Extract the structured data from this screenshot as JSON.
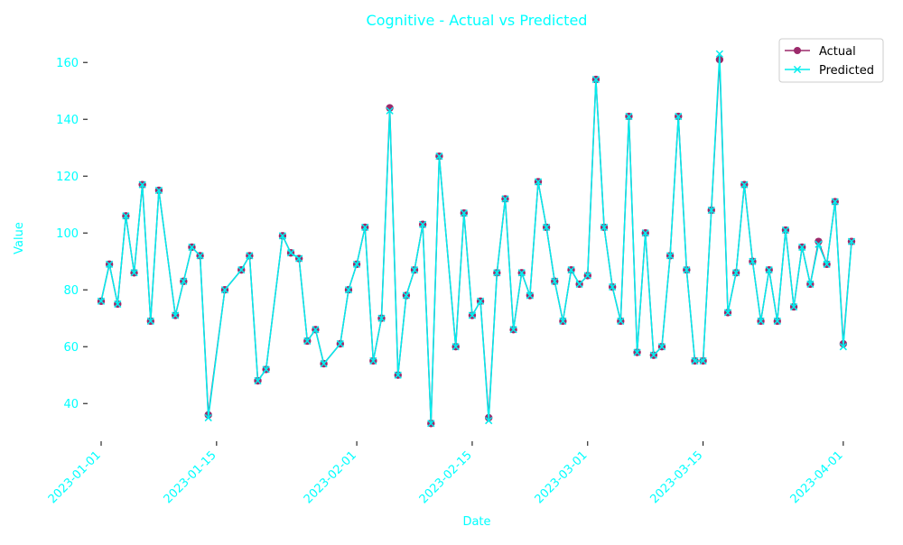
{
  "chart_data": {
    "type": "line",
    "title": "Cognitive - Actual vs Predicted",
    "xlabel": "Date",
    "ylabel": "Value",
    "x_start": "2023-01-01",
    "x_end": "2023-04-02",
    "x_ticks": [
      "2023-01-01",
      "2023-01-15",
      "2023-02-01",
      "2023-02-15",
      "2023-03-01",
      "2023-03-15",
      "2023-04-01"
    ],
    "ylim": [
      28,
      168
    ],
    "y_ticks": [
      40,
      60,
      80,
      100,
      120,
      140,
      160
    ],
    "grid": false,
    "legend": "top-right",
    "colors": {
      "text": "#00ffff",
      "actual": "#9b2a6b",
      "predicted": "#00eeee"
    },
    "series": [
      {
        "name": "Actual",
        "marker": "circle",
        "points": [
          [
            "2023-01-01",
            76
          ],
          [
            "2023-01-02",
            89
          ],
          [
            "2023-01-03",
            75
          ],
          [
            "2023-01-04",
            106
          ],
          [
            "2023-01-05",
            86
          ],
          [
            "2023-01-06",
            117
          ],
          [
            "2023-01-07",
            69
          ],
          [
            "2023-01-08",
            115
          ],
          [
            "2023-01-10",
            71
          ],
          [
            "2023-01-11",
            83
          ],
          [
            "2023-01-12",
            95
          ],
          [
            "2023-01-13",
            92
          ],
          [
            "2023-01-14",
            36
          ],
          [
            "2023-01-16",
            80
          ],
          [
            "2023-01-18",
            87
          ],
          [
            "2023-01-19",
            92
          ],
          [
            "2023-01-20",
            48
          ],
          [
            "2023-01-21",
            52
          ],
          [
            "2023-01-23",
            99
          ],
          [
            "2023-01-24",
            93
          ],
          [
            "2023-01-25",
            91
          ],
          [
            "2023-01-26",
            62
          ],
          [
            "2023-01-27",
            66
          ],
          [
            "2023-01-28",
            54
          ],
          [
            "2023-01-30",
            61
          ],
          [
            "2023-01-31",
            80
          ],
          [
            "2023-02-01",
            89
          ],
          [
            "2023-02-02",
            102
          ],
          [
            "2023-02-03",
            55
          ],
          [
            "2023-02-04",
            70
          ],
          [
            "2023-02-05",
            144
          ],
          [
            "2023-02-06",
            50
          ],
          [
            "2023-02-07",
            78
          ],
          [
            "2023-02-08",
            87
          ],
          [
            "2023-02-09",
            103
          ],
          [
            "2023-02-10",
            33
          ],
          [
            "2023-02-11",
            127
          ],
          [
            "2023-02-13",
            60
          ],
          [
            "2023-02-14",
            107
          ],
          [
            "2023-02-15",
            71
          ],
          [
            "2023-02-16",
            76
          ],
          [
            "2023-02-17",
            35
          ],
          [
            "2023-02-18",
            86
          ],
          [
            "2023-02-19",
            112
          ],
          [
            "2023-02-20",
            66
          ],
          [
            "2023-02-21",
            86
          ],
          [
            "2023-02-22",
            78
          ],
          [
            "2023-02-23",
            118
          ],
          [
            "2023-02-24",
            102
          ],
          [
            "2023-02-25",
            83
          ],
          [
            "2023-02-26",
            69
          ],
          [
            "2023-02-27",
            87
          ],
          [
            "2023-02-28",
            82
          ],
          [
            "2023-03-01",
            85
          ],
          [
            "2023-03-02",
            154
          ],
          [
            "2023-03-03",
            102
          ],
          [
            "2023-03-04",
            81
          ],
          [
            "2023-03-05",
            69
          ],
          [
            "2023-03-06",
            141
          ],
          [
            "2023-03-07",
            58
          ],
          [
            "2023-03-08",
            100
          ],
          [
            "2023-03-09",
            57
          ],
          [
            "2023-03-10",
            60
          ],
          [
            "2023-03-11",
            92
          ],
          [
            "2023-03-12",
            141
          ],
          [
            "2023-03-13",
            87
          ],
          [
            "2023-03-14",
            55
          ],
          [
            "2023-03-15",
            55
          ],
          [
            "2023-03-16",
            108
          ],
          [
            "2023-03-17",
            161
          ],
          [
            "2023-03-18",
            72
          ],
          [
            "2023-03-19",
            86
          ],
          [
            "2023-03-20",
            117
          ],
          [
            "2023-03-21",
            90
          ],
          [
            "2023-03-22",
            69
          ],
          [
            "2023-03-23",
            87
          ],
          [
            "2023-03-24",
            69
          ],
          [
            "2023-03-25",
            101
          ],
          [
            "2023-03-26",
            74
          ],
          [
            "2023-03-27",
            95
          ],
          [
            "2023-03-28",
            82
          ],
          [
            "2023-03-29",
            97
          ],
          [
            "2023-03-30",
            89
          ],
          [
            "2023-03-31",
            111
          ],
          [
            "2023-04-01",
            61
          ],
          [
            "2023-04-02",
            97
          ]
        ]
      },
      {
        "name": "Predicted",
        "marker": "x",
        "points": [
          [
            "2023-01-01",
            76
          ],
          [
            "2023-01-02",
            89
          ],
          [
            "2023-01-03",
            75
          ],
          [
            "2023-01-04",
            106
          ],
          [
            "2023-01-05",
            86
          ],
          [
            "2023-01-06",
            117
          ],
          [
            "2023-01-07",
            69
          ],
          [
            "2023-01-08",
            115
          ],
          [
            "2023-01-10",
            71
          ],
          [
            "2023-01-11",
            83
          ],
          [
            "2023-01-12",
            95
          ],
          [
            "2023-01-13",
            92
          ],
          [
            "2023-01-14",
            35
          ],
          [
            "2023-01-16",
            80
          ],
          [
            "2023-01-18",
            87
          ],
          [
            "2023-01-19",
            92
          ],
          [
            "2023-01-20",
            48
          ],
          [
            "2023-01-21",
            52
          ],
          [
            "2023-01-23",
            99
          ],
          [
            "2023-01-24",
            93
          ],
          [
            "2023-01-25",
            91
          ],
          [
            "2023-01-26",
            62
          ],
          [
            "2023-01-27",
            66
          ],
          [
            "2023-01-28",
            54
          ],
          [
            "2023-01-30",
            61
          ],
          [
            "2023-01-31",
            80
          ],
          [
            "2023-02-01",
            89
          ],
          [
            "2023-02-02",
            102
          ],
          [
            "2023-02-03",
            55
          ],
          [
            "2023-02-04",
            70
          ],
          [
            "2023-02-05",
            143
          ],
          [
            "2023-02-06",
            50
          ],
          [
            "2023-02-07",
            78
          ],
          [
            "2023-02-08",
            87
          ],
          [
            "2023-02-09",
            103
          ],
          [
            "2023-02-10",
            33
          ],
          [
            "2023-02-11",
            127
          ],
          [
            "2023-02-13",
            60
          ],
          [
            "2023-02-14",
            107
          ],
          [
            "2023-02-15",
            71
          ],
          [
            "2023-02-16",
            76
          ],
          [
            "2023-02-17",
            34
          ],
          [
            "2023-02-18",
            86
          ],
          [
            "2023-02-19",
            112
          ],
          [
            "2023-02-20",
            66
          ],
          [
            "2023-02-21",
            86
          ],
          [
            "2023-02-22",
            78
          ],
          [
            "2023-02-23",
            118
          ],
          [
            "2023-02-24",
            102
          ],
          [
            "2023-02-25",
            83
          ],
          [
            "2023-02-26",
            69
          ],
          [
            "2023-02-27",
            87
          ],
          [
            "2023-02-28",
            82
          ],
          [
            "2023-03-01",
            85
          ],
          [
            "2023-03-02",
            154
          ],
          [
            "2023-03-03",
            102
          ],
          [
            "2023-03-04",
            81
          ],
          [
            "2023-03-05",
            69
          ],
          [
            "2023-03-06",
            141
          ],
          [
            "2023-03-07",
            58
          ],
          [
            "2023-03-08",
            100
          ],
          [
            "2023-03-09",
            57
          ],
          [
            "2023-03-10",
            60
          ],
          [
            "2023-03-11",
            92
          ],
          [
            "2023-03-12",
            141
          ],
          [
            "2023-03-13",
            87
          ],
          [
            "2023-03-14",
            55
          ],
          [
            "2023-03-15",
            55
          ],
          [
            "2023-03-16",
            108
          ],
          [
            "2023-03-17",
            163
          ],
          [
            "2023-03-18",
            72
          ],
          [
            "2023-03-19",
            86
          ],
          [
            "2023-03-20",
            117
          ],
          [
            "2023-03-21",
            90
          ],
          [
            "2023-03-22",
            69
          ],
          [
            "2023-03-23",
            87
          ],
          [
            "2023-03-24",
            69
          ],
          [
            "2023-03-25",
            101
          ],
          [
            "2023-03-26",
            74
          ],
          [
            "2023-03-27",
            95
          ],
          [
            "2023-03-28",
            82
          ],
          [
            "2023-03-29",
            96
          ],
          [
            "2023-03-30",
            89
          ],
          [
            "2023-03-31",
            111
          ],
          [
            "2023-04-01",
            60
          ],
          [
            "2023-04-02",
            97
          ]
        ]
      }
    ]
  }
}
